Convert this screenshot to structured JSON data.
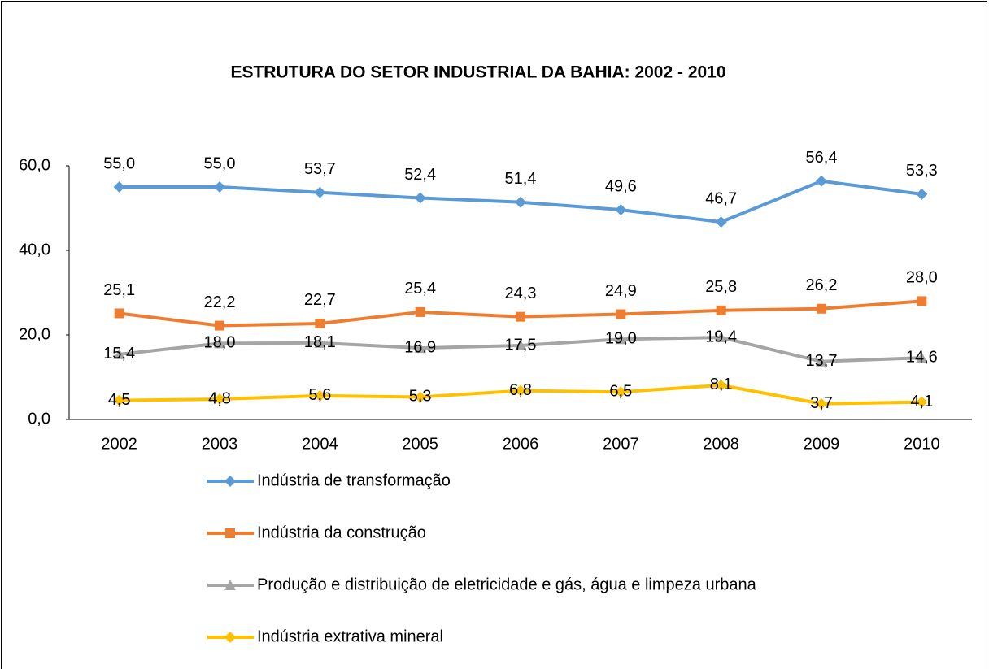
{
  "chart_data": {
    "type": "line",
    "title": "ESTRUTURA DO SETOR INDUSTRIAL DA BAHIA: 2002 - 2010",
    "categories": [
      "2002",
      "2003",
      "2004",
      "2005",
      "2006",
      "2007",
      "2008",
      "2009",
      "2010"
    ],
    "series": [
      {
        "name": "Indústria de transformação",
        "color": "#5b9bd5",
        "marker": "diamond",
        "label_position": "above",
        "values": [
          55.0,
          55.0,
          53.7,
          52.4,
          51.4,
          49.6,
          46.7,
          56.4,
          53.3
        ],
        "value_labels": [
          "55,0",
          "55,0",
          "53,7",
          "52,4",
          "51,4",
          "49,6",
          "46,7",
          "56,4",
          "53,3"
        ]
      },
      {
        "name": "Indústria da construção",
        "color": "#ed7d31",
        "marker": "square",
        "label_position": "above",
        "values": [
          25.1,
          22.2,
          22.7,
          25.4,
          24.3,
          24.9,
          25.8,
          26.2,
          28.0
        ],
        "value_labels": [
          "25,1",
          "22,2",
          "22,7",
          "25,4",
          "24,3",
          "24,9",
          "25,8",
          "26,2",
          "28,0"
        ]
      },
      {
        "name": "Produção e distribuição de eletricidade e gás, água e limpeza urbana",
        "color": "#a5a5a5",
        "marker": "triangle",
        "label_position": "center",
        "values": [
          15.4,
          18.0,
          18.1,
          16.9,
          17.5,
          19.0,
          19.4,
          13.7,
          14.6
        ],
        "value_labels": [
          "15,4",
          "18,0",
          "18,1",
          "16,9",
          "17,5",
          "19,0",
          "19,4",
          "13,7",
          "14,6"
        ]
      },
      {
        "name": "Indústria extrativa mineral",
        "color": "#ffc000",
        "marker": "diamond",
        "label_position": "center",
        "values": [
          4.5,
          4.8,
          5.6,
          5.3,
          6.8,
          6.5,
          8.1,
          3.7,
          4.1
        ],
        "value_labels": [
          "4,5",
          "4,8",
          "5,6",
          "5,3",
          "6,8",
          "6,5",
          "8,1",
          "3,7",
          "4,1"
        ]
      }
    ],
    "ylim": [
      0,
      60
    ],
    "yticks": [
      {
        "value": 0,
        "label": "0,0"
      },
      {
        "value": 20,
        "label": "20,0"
      },
      {
        "value": 40,
        "label": "40,0"
      },
      {
        "value": 60,
        "label": "60,0"
      }
    ],
    "grid": false,
    "legend": "bottom"
  }
}
